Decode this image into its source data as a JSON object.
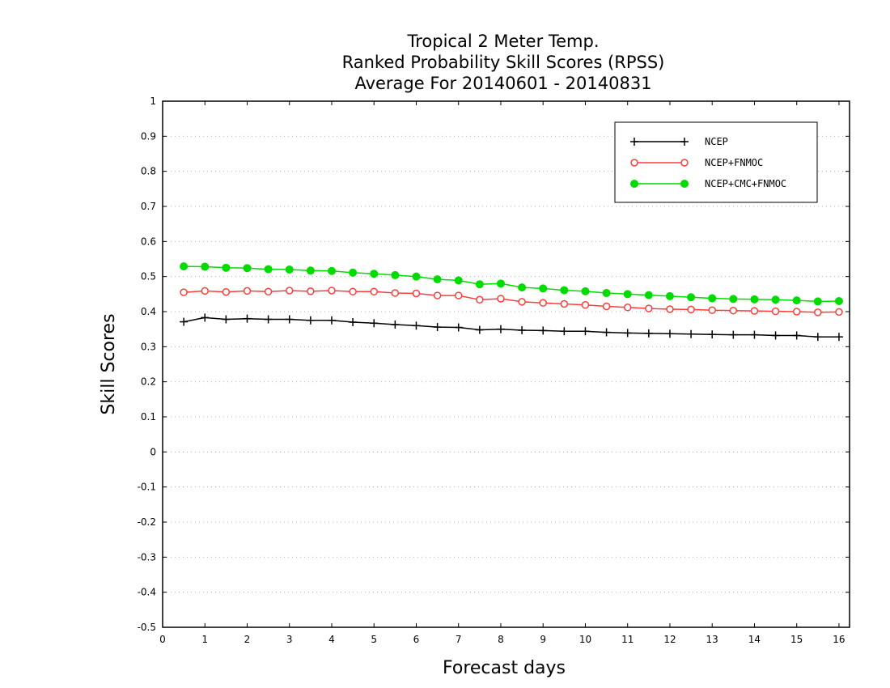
{
  "colors": {
    "NCEP": "#000000",
    "NCEP+FNMOC": "#ff3c3c",
    "NCEP+CMC+FNMOC": "#00dc00",
    "grid": "#b4b4b4",
    "background": "#ffffff"
  },
  "chart_data": {
    "type": "line",
    "title": "Tropical 2 Meter Temp.",
    "subtitle": "Ranked Probability Skill Scores (RPSS)",
    "subtitle2": "Average For 20140601 - 20140831",
    "xlabel": "Forecast days",
    "ylabel": "Skill Scores",
    "xlim": [
      0,
      16.25
    ],
    "ylim": [
      -0.5,
      1
    ],
    "xticks": [
      0,
      1,
      2,
      3,
      4,
      5,
      6,
      7,
      8,
      9,
      10,
      11,
      12,
      13,
      14,
      15,
      16
    ],
    "yticks": [
      -0.5,
      -0.4,
      -0.3,
      -0.2,
      -0.1,
      0,
      0.1,
      0.2,
      0.3,
      0.4,
      0.5,
      0.6,
      0.7,
      0.8,
      0.9,
      1
    ],
    "ytick_labels": [
      "-0.5",
      "-0.4",
      "-0.3",
      "-0.2",
      "-0.1",
      "0",
      "0.1",
      "0.2",
      "0.3",
      "0.4",
      "0.5",
      "0.6",
      "0.7",
      "0.8",
      "0.9",
      "1"
    ],
    "grid": "horizontal dotted",
    "legend_position": "top-right",
    "x": [
      0.5,
      1,
      1.5,
      2,
      2.5,
      3,
      3.5,
      4,
      4.5,
      5,
      5.5,
      6,
      6.5,
      7,
      7.5,
      8,
      8.5,
      9,
      9.5,
      10,
      10.5,
      11,
      11.5,
      12,
      12.5,
      13,
      13.5,
      14,
      14.5,
      15,
      15.5,
      16
    ],
    "series": [
      {
        "name": "NCEP",
        "marker": "plus",
        "values": [
          0.371,
          0.383,
          0.378,
          0.38,
          0.378,
          0.378,
          0.375,
          0.375,
          0.37,
          0.367,
          0.363,
          0.36,
          0.356,
          0.355,
          0.348,
          0.35,
          0.347,
          0.346,
          0.344,
          0.344,
          0.341,
          0.339,
          0.338,
          0.337,
          0.336,
          0.335,
          0.334,
          0.334,
          0.332,
          0.332,
          0.328,
          0.328
        ]
      },
      {
        "name": "NCEP+FNMOC",
        "marker": "open-circle",
        "values": [
          0.455,
          0.459,
          0.456,
          0.459,
          0.457,
          0.46,
          0.458,
          0.46,
          0.457,
          0.457,
          0.453,
          0.452,
          0.446,
          0.446,
          0.434,
          0.437,
          0.428,
          0.425,
          0.422,
          0.419,
          0.415,
          0.412,
          0.409,
          0.407,
          0.406,
          0.404,
          0.403,
          0.402,
          0.401,
          0.4,
          0.398,
          0.399
        ]
      },
      {
        "name": "NCEP+CMC+FNMOC",
        "marker": "filled-circle",
        "values": [
          0.529,
          0.528,
          0.525,
          0.524,
          0.521,
          0.52,
          0.517,
          0.516,
          0.511,
          0.508,
          0.504,
          0.5,
          0.492,
          0.489,
          0.478,
          0.48,
          0.469,
          0.466,
          0.461,
          0.458,
          0.453,
          0.45,
          0.447,
          0.444,
          0.441,
          0.438,
          0.436,
          0.435,
          0.434,
          0.432,
          0.429,
          0.43
        ]
      }
    ]
  }
}
